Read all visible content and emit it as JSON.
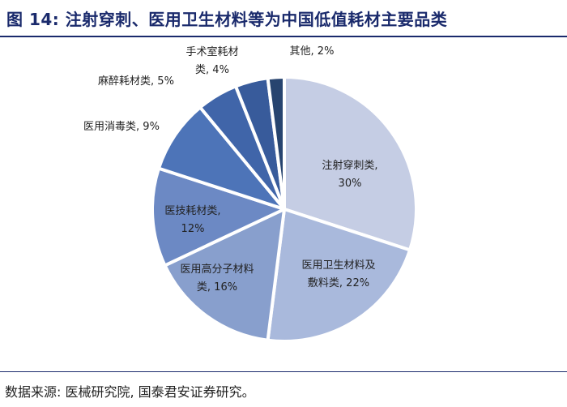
{
  "header": {
    "title": "图 14:  注射穿刺、医用卫生材料等为中国低值耗材主要品类"
  },
  "chart_data": {
    "type": "pie",
    "title": "",
    "slices": [
      {
        "name": "注射穿刺类",
        "value": 30,
        "color": "#c5cde4",
        "label_lines": [
          "注射穿刺类,",
          "30%"
        ]
      },
      {
        "name": "医用卫生材料及敷料类",
        "value": 22,
        "color": "#a9b9dc",
        "label_lines": [
          "医用卫生材料及",
          "敷料类, 22%"
        ]
      },
      {
        "name": "医用高分子材料类",
        "value": 16,
        "color": "#889fcd",
        "label_lines": [
          "医用高分子材料",
          "类, 16%"
        ]
      },
      {
        "name": "医技耗材类",
        "value": 12,
        "color": "#6c89c4",
        "label_lines": [
          "医技耗材类,",
          "12%"
        ]
      },
      {
        "name": "医用消毒类",
        "value": 9,
        "color": "#4d74b8",
        "label_lines": [
          "医用消毒类, 9%"
        ]
      },
      {
        "name": "麻醉耗材类",
        "value": 5,
        "color": "#4065a9",
        "label_lines": [
          "麻醉耗材类, 5%"
        ]
      },
      {
        "name": "手术室耗材类",
        "value": 4,
        "color": "#385b9b",
        "label_lines": [
          "手术室耗材",
          "类, 4%"
        ]
      },
      {
        "name": "其他",
        "value": 2,
        "color": "#27446f",
        "label_lines": [
          "其他, 2%"
        ]
      }
    ]
  },
  "footer": {
    "source": "数据来源: 医械研究院, 国泰君安证券研究。"
  }
}
